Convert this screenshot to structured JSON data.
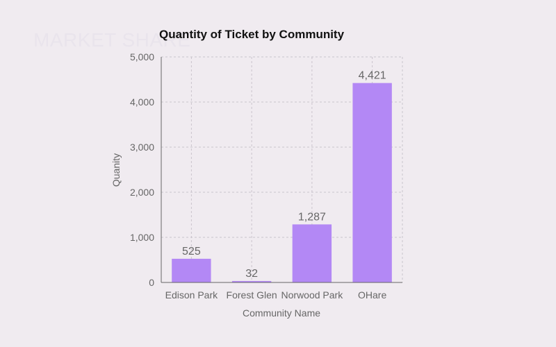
{
  "watermark": "MARKET SHARE",
  "chart_data": {
    "type": "bar",
    "title": "Quantity of Ticket by Community",
    "xlabel": "Community Name",
    "ylabel": "Quanity",
    "categories": [
      "Edison Park",
      "Forest Glen",
      "Norwood Park",
      "OHare"
    ],
    "values": [
      525,
      32,
      1287,
      4421
    ],
    "data_labels": [
      "525",
      "32",
      "1,287",
      "4,421"
    ],
    "ylim": [
      0,
      5000
    ],
    "yticks": [
      0,
      1000,
      2000,
      3000,
      4000,
      5000
    ],
    "ytick_labels": [
      "0",
      "1,000",
      "2,000",
      "3,000",
      "4,000",
      "5,000"
    ],
    "bar_color": "#b388f5",
    "grid": true,
    "legend": "none"
  }
}
